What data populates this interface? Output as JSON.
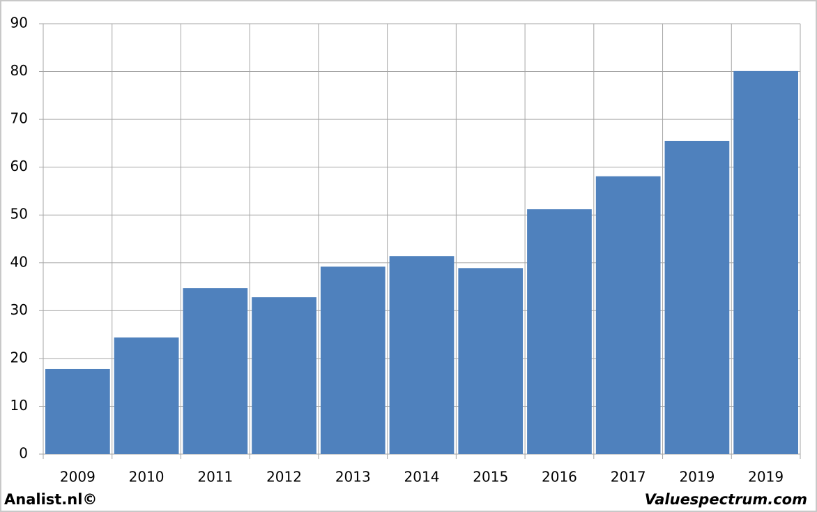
{
  "chart_data": {
    "type": "bar",
    "categories": [
      "2009",
      "2010",
      "2011",
      "2012",
      "2013",
      "2014",
      "2015",
      "2016",
      "2017",
      "2019",
      "2019"
    ],
    "values": [
      17.8,
      24.4,
      34.7,
      32.8,
      39.2,
      41.4,
      38.9,
      51.2,
      58.1,
      65.5,
      80.1
    ],
    "color": "#4f81bd",
    "ylim": [
      0,
      90
    ],
    "yticks": [
      0,
      10,
      20,
      30,
      40,
      50,
      60,
      70,
      80,
      90
    ],
    "grid": true,
    "annotations": [
      "Analist.nl©",
      "Valuespectrum.com"
    ]
  }
}
